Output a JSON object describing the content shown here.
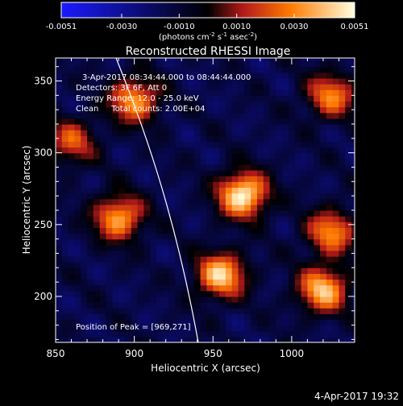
{
  "colorbar": {
    "tick_labels": [
      "-0.0051",
      "-0.0030",
      "-0.0010",
      "0.0010",
      "0.0030",
      "0.0051"
    ],
    "unit_label": "(photons cm",
    "unit_exp1": "-2",
    "unit_mid": " s",
    "unit_exp2": "-1",
    "unit_mid2": " asec",
    "unit_exp3": "-2",
    "unit_end": ")",
    "range": [
      -0.0051,
      0.0051
    ]
  },
  "chart_data": {
    "type": "heatmap",
    "title": "Reconstructed RHESSI Image",
    "xlabel": "Heliocentric X (arcsec)",
    "ylabel": "Heliocentric Y (arcsec)",
    "xlim": [
      850,
      1040
    ],
    "ylim": [
      168,
      366
    ],
    "x_ticks": [
      "850",
      "900",
      "950",
      "1000"
    ],
    "y_ticks": [
      "200",
      "250",
      "300",
      "350"
    ],
    "x_tick_values": [
      850,
      900,
      950,
      1000
    ],
    "y_tick_values": [
      200,
      250,
      300,
      350
    ],
    "colormap": [
      "#1a1aff",
      "#000000",
      "#b31a1a",
      "#ff8a00",
      "#ffffe0"
    ],
    "sources": [
      {
        "x": 969,
        "y": 271,
        "peak": 0.0051
      },
      {
        "x": 900,
        "y": 337,
        "peak": 0.0034
      },
      {
        "x": 890,
        "y": 255,
        "peak": 0.0036
      },
      {
        "x": 955,
        "y": 215,
        "peak": 0.0042
      },
      {
        "x": 1020,
        "y": 205,
        "peak": 0.004
      },
      {
        "x": 1025,
        "y": 245,
        "peak": 0.003
      },
      {
        "x": 1025,
        "y": 340,
        "peak": 0.0028
      },
      {
        "x": 860,
        "y": 308,
        "peak": 0.002
      }
    ],
    "info": {
      "line1": "3-Apr-2017 08:34:44.000 to 08:44:44.000",
      "line2": "Detectors: 3F 6F, Att 0",
      "line3": "Energy Range: 12.0 - 25.0 keV",
      "line4": "Clean     Total counts: 2.00E+04",
      "peak_text": "Position of Peak = [969,271]"
    }
  },
  "footer": {
    "timestamp": "4-Apr-2017 19:32"
  }
}
